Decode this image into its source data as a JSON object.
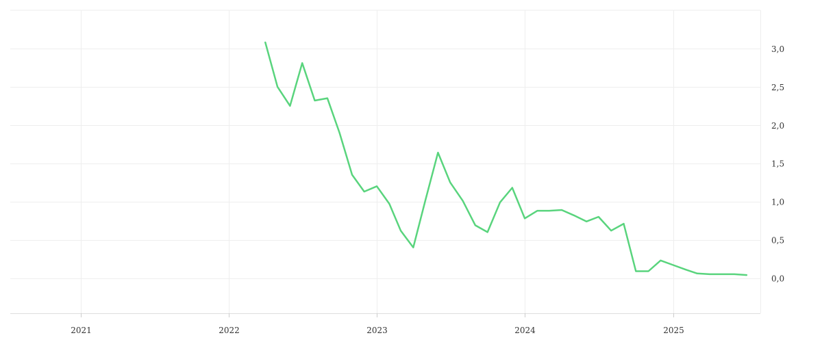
{
  "chart_data": {
    "type": "line",
    "title": "",
    "xlabel": "",
    "ylabel": "",
    "x_ticks": [
      {
        "label": "2021",
        "value": "2021-01-01"
      },
      {
        "label": "2022",
        "value": "2022-01-01"
      },
      {
        "label": "2023",
        "value": "2023-01-01"
      },
      {
        "label": "2024",
        "value": "2024-01-01"
      },
      {
        "label": "2025",
        "value": "2025-01-01"
      }
    ],
    "y_ticks": [
      {
        "label": "0,0",
        "value": 0.0
      },
      {
        "label": "0,5",
        "value": 0.5
      },
      {
        "label": "1,0",
        "value": 1.0
      },
      {
        "label": "1,5",
        "value": 1.5
      },
      {
        "label": "2,0",
        "value": 2.0
      },
      {
        "label": "2,5",
        "value": 2.5
      },
      {
        "label": "3,0",
        "value": 3.0
      }
    ],
    "xlim": [
      "2020-07-11",
      "2025-08-04"
    ],
    "ylim": [
      -0.46,
      3.5
    ],
    "grid": true,
    "y_axis_side": "right",
    "series_color": "#59d47d",
    "series": [
      {
        "x": [
          "2022-04-01",
          "2022-05-01",
          "2022-06-01",
          "2022-07-01",
          "2022-08-01",
          "2022-09-01",
          "2022-10-01",
          "2022-11-01",
          "2022-12-01",
          "2023-01-01",
          "2023-02-01",
          "2023-03-01",
          "2023-04-01",
          "2023-05-01",
          "2023-06-01",
          "2023-07-01",
          "2023-08-01",
          "2023-09-01",
          "2023-10-01",
          "2023-11-01",
          "2023-12-01",
          "2024-01-01",
          "2024-02-01",
          "2024-03-01",
          "2024-04-01",
          "2024-05-01",
          "2024-06-01",
          "2024-07-01",
          "2024-08-01",
          "2024-09-01",
          "2024-10-01",
          "2024-11-01",
          "2024-12-01",
          "2025-01-01",
          "2025-02-01",
          "2025-03-01",
          "2025-04-01",
          "2025-05-01",
          "2025-06-01",
          "2025-07-01"
        ],
        "values": [
          3.08,
          2.5,
          2.25,
          2.81,
          2.32,
          2.35,
          1.9,
          1.35,
          1.13,
          1.2,
          0.97,
          0.62,
          0.4,
          1.02,
          1.64,
          1.25,
          1.01,
          0.69,
          0.6,
          0.99,
          1.18,
          0.78,
          0.88,
          0.88,
          0.89,
          0.82,
          0.74,
          0.8,
          0.62,
          0.71,
          0.09,
          0.09,
          0.23,
          0.17,
          0.11,
          0.06,
          0.05,
          0.05,
          0.05,
          0.04
        ]
      }
    ]
  }
}
